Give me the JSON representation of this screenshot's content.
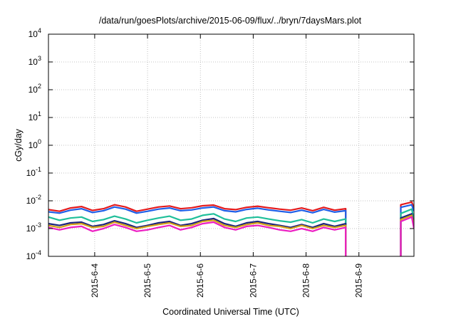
{
  "chart_data": {
    "type": "line",
    "title": "/data/run/goesPlots/archive/2015-06-09/flux/../bryn/7daysMars.plot",
    "xlabel": "Coordinated Universal Time (UTC)",
    "ylabel": "cGy/day",
    "yscale": "log",
    "ylim": [
      0.0001,
      10000
    ],
    "xlim": [
      "2015-06-03 03:00",
      "2015-06-10 01:00"
    ],
    "x_ticks": [
      "2015-6-4",
      "2015-6-5",
      "2015-6-6",
      "2015-6-7",
      "2015-6-8",
      "2015-6-9"
    ],
    "y_ticks": [
      {
        "base": "10",
        "exp": "-4",
        "value": 0.0001
      },
      {
        "base": "10",
        "exp": "-3",
        "value": 0.001
      },
      {
        "base": "10",
        "exp": "-2",
        "value": 0.01
      },
      {
        "base": "10",
        "exp": "-1",
        "value": 0.1
      },
      {
        "base": "10",
        "exp": "0",
        "value": 1
      },
      {
        "base": "10",
        "exp": "1",
        "value": 10
      },
      {
        "base": "10",
        "exp": "2",
        "value": 100
      },
      {
        "base": "10",
        "exp": "3",
        "value": 1000
      },
      {
        "base": "10",
        "exp": "4",
        "value": 10000
      }
    ],
    "grid": true,
    "legend": "none",
    "x": [
      "2015-06-03 03:00",
      "2015-06-03 08:00",
      "2015-06-03 13:00",
      "2015-06-03 18:00",
      "2015-06-03 23:00",
      "2015-06-04 04:00",
      "2015-06-04 09:00",
      "2015-06-04 14:00",
      "2015-06-04 19:00",
      "2015-06-05 00:00",
      "2015-06-05 05:00",
      "2015-06-05 10:00",
      "2015-06-05 15:00",
      "2015-06-05 20:00",
      "2015-06-06 01:00",
      "2015-06-06 06:00",
      "2015-06-06 11:00",
      "2015-06-06 16:00",
      "2015-06-06 21:00",
      "2015-06-07 02:00",
      "2015-06-07 07:00",
      "2015-06-07 12:00",
      "2015-06-07 17:00",
      "2015-06-07 22:00",
      "2015-06-08 03:00",
      "2015-06-08 08:00",
      "2015-06-08 13:00",
      "2015-06-08 18:00",
      "2015-06-08 23:00",
      "2015-06-09 04:00",
      "2015-06-09 09:00",
      "2015-06-09 14:00",
      "2015-06-09 19:00",
      "2015-06-10 00:00",
      "2015-06-10 01:00"
    ],
    "series": [
      {
        "color": "#e41a1c",
        "values": [
          0.0048,
          0.0042,
          0.0055,
          0.0062,
          0.0045,
          0.0052,
          0.0072,
          0.006,
          0.0042,
          0.005,
          0.006,
          0.0065,
          0.0052,
          0.0056,
          0.0066,
          0.007,
          0.0052,
          0.0048,
          0.0058,
          0.0064,
          0.0056,
          0.005,
          0.0046,
          0.0055,
          0.0044,
          0.0058,
          0.0046,
          0.0052,
          null,
          null,
          null,
          null,
          0.0072,
          0.009,
          0.0055
        ]
      },
      {
        "color": "#1f5fe8",
        "values": [
          0.004,
          0.0036,
          0.0046,
          0.0052,
          0.0038,
          0.0044,
          0.006,
          0.005,
          0.0036,
          0.0042,
          0.005,
          0.0055,
          0.0044,
          0.0047,
          0.0055,
          0.006,
          0.0044,
          0.004,
          0.0049,
          0.0054,
          0.0047,
          0.0042,
          0.0038,
          0.0046,
          0.0037,
          0.0049,
          0.0039,
          0.0044,
          null,
          null,
          null,
          null,
          0.0058,
          0.0072,
          0.0042
        ]
      },
      {
        "color": "#1fbf9a",
        "values": [
          0.0026,
          0.002,
          0.0024,
          0.0026,
          0.0018,
          0.0021,
          0.0028,
          0.0022,
          0.0016,
          0.002,
          0.0024,
          0.0028,
          0.002,
          0.0022,
          0.003,
          0.0034,
          0.0022,
          0.0018,
          0.0024,
          0.0026,
          0.0022,
          0.0019,
          0.0017,
          0.0021,
          0.0016,
          0.0022,
          0.0018,
          0.0022,
          null,
          null,
          null,
          null,
          0.0035,
          0.005,
          0.0022
        ]
      },
      {
        "color": "#1a237e",
        "values": [
          0.0015,
          0.0013,
          0.0016,
          0.0017,
          0.0012,
          0.0014,
          0.0019,
          0.0015,
          0.0011,
          0.0013,
          0.0016,
          0.0018,
          0.0013,
          0.0015,
          0.002,
          0.0023,
          0.0015,
          0.0012,
          0.0016,
          0.0018,
          0.0015,
          0.0013,
          0.0011,
          0.0014,
          0.0011,
          0.0015,
          0.0012,
          0.0015,
          null,
          null,
          null,
          null,
          0.0024,
          0.0034,
          0.0014
        ]
      },
      {
        "color": "#d4a017",
        "values": [
          0.0013,
          0.0011,
          0.0014,
          0.0015,
          0.0011,
          0.0012,
          0.0017,
          0.0013,
          0.001,
          0.0012,
          0.0014,
          0.0016,
          0.0012,
          0.0013,
          0.0018,
          0.002,
          0.0013,
          0.0011,
          0.0014,
          0.0016,
          0.0013,
          0.0012,
          0.001,
          0.0013,
          0.001,
          0.0013,
          0.0011,
          0.0013,
          null,
          null,
          null,
          null,
          0.0021,
          0.003,
          0.0012
        ]
      },
      {
        "color": "#ec1ec2",
        "values": [
          0.0011,
          0.0009,
          0.0011,
          0.0012,
          0.0008,
          0.001,
          0.0014,
          0.0011,
          0.0008,
          0.0009,
          0.0011,
          0.0013,
          0.0009,
          0.0011,
          0.0015,
          0.0017,
          0.0011,
          0.0009,
          0.0012,
          0.0013,
          0.0011,
          0.0009,
          0.0008,
          0.001,
          0.0008,
          0.0011,
          0.0009,
          0.0011,
          null,
          null,
          null,
          null,
          0.0018,
          0.0026,
          0.001
        ]
      }
    ]
  }
}
